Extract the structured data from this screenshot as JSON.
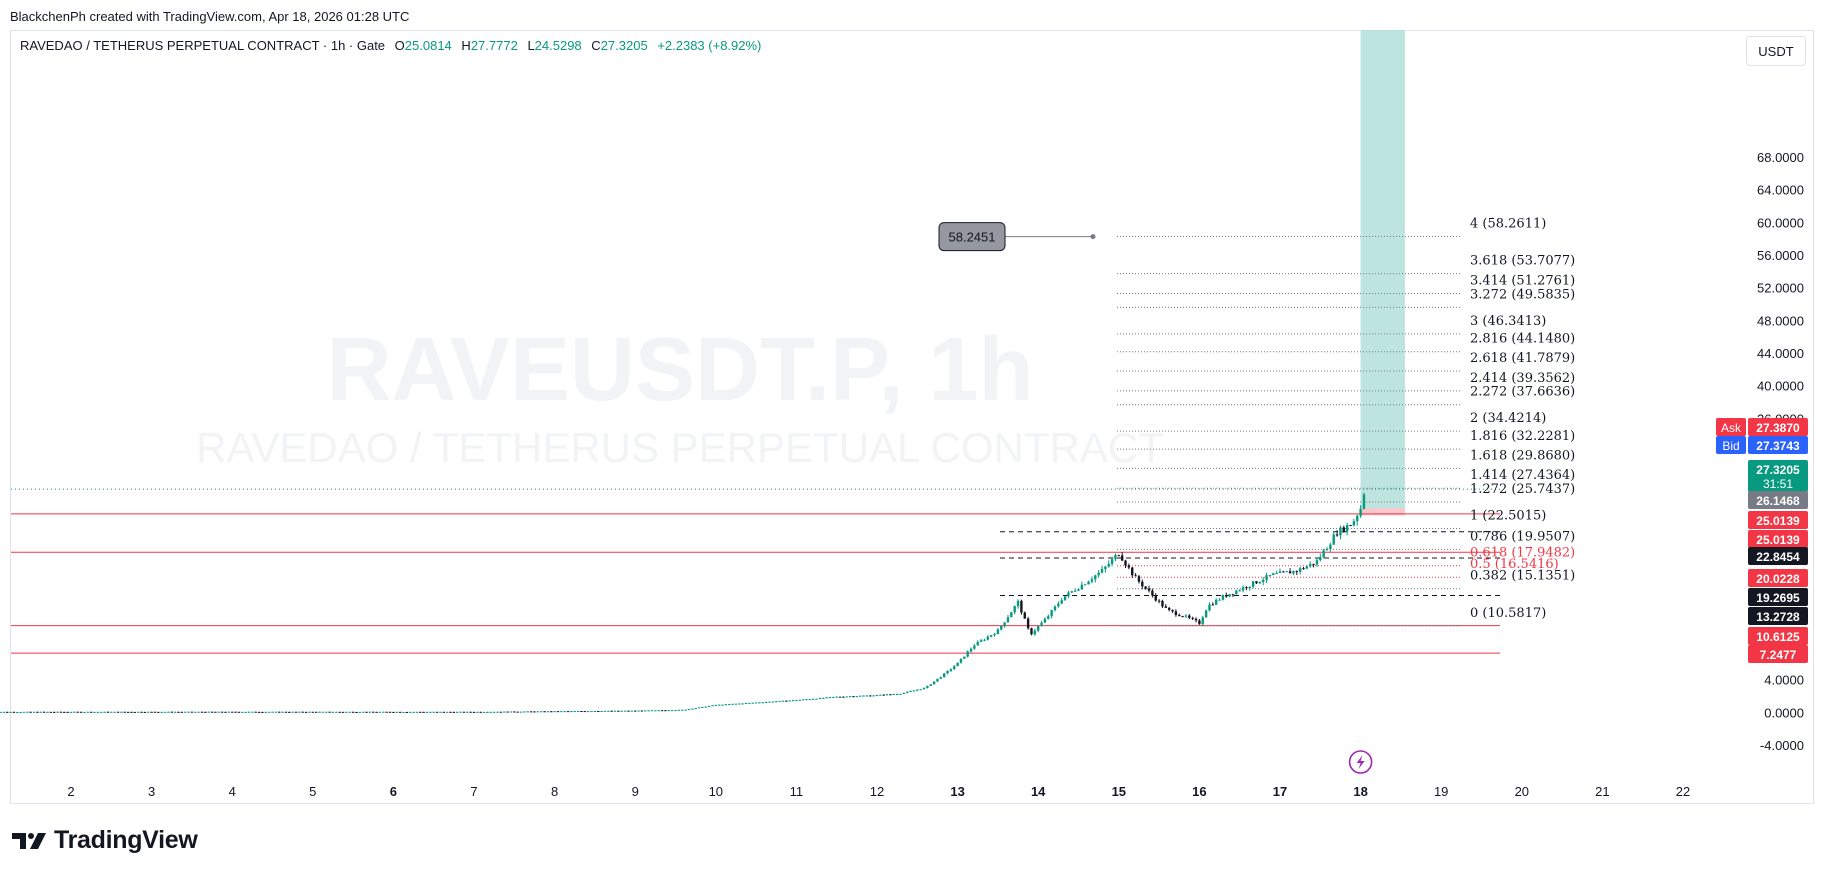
{
  "header": {
    "attribution": "BlackchenPh created with TradingView.com, Apr 18, 2026 01:28 UTC"
  },
  "legend": {
    "symbol": "RAVEDAO / TETHERUS PERPETUAL CONTRACT · 1h · Gate",
    "o_label": "O",
    "o": "25.0814",
    "h_label": "H",
    "h": "27.7772",
    "l_label": "L",
    "l": "24.5298",
    "c_label": "C",
    "c": "27.3205",
    "change": "+2.2383 (+8.92%)"
  },
  "currency": "USDT",
  "brand": "TradingView",
  "watermark": {
    "ticker": "RAVEUSDT.P, 1h",
    "name": "RAVEDAO / TETHERUS PERPETUAL CONTRACT"
  },
  "colors": {
    "up": "#089981",
    "down": "#131722",
    "red": "#f23645",
    "blue": "#2962ff",
    "target": "#b2dfd8",
    "accent": "#9c27b0"
  },
  "chart_data": {
    "type": "candlestick",
    "ylim": [
      -6,
      72
    ],
    "yticks": [
      "68.0000",
      "64.0000",
      "60.0000",
      "56.0000",
      "52.0000",
      "48.0000",
      "44.0000",
      "40.0000",
      "36.0000",
      "4.0000",
      "0.0000",
      "-4.0000"
    ],
    "xticks": [
      "2",
      "3",
      "4",
      "5",
      "6",
      "7",
      "8",
      "9",
      "10",
      "11",
      "12",
      "13",
      "14",
      "15",
      "16",
      "17",
      "18",
      "19",
      "20",
      "21",
      "22"
    ],
    "close_path": [
      {
        "day": 1.0,
        "p": 0.05
      },
      {
        "day": 4.0,
        "p": 0.06
      },
      {
        "day": 7.0,
        "p": 0.05
      },
      {
        "day": 9.0,
        "p": 0.2
      },
      {
        "day": 9.6,
        "p": 0.3
      },
      {
        "day": 10.0,
        "p": 0.9
      },
      {
        "day": 10.5,
        "p": 1.2
      },
      {
        "day": 11.0,
        "p": 1.5
      },
      {
        "day": 11.5,
        "p": 1.9
      },
      {
        "day": 12.0,
        "p": 2.1
      },
      {
        "day": 12.3,
        "p": 2.3
      },
      {
        "day": 12.6,
        "p": 3.0
      },
      {
        "day": 12.85,
        "p": 4.8
      },
      {
        "day": 13.0,
        "p": 6.0
      },
      {
        "day": 13.2,
        "p": 8.2
      },
      {
        "day": 13.5,
        "p": 10.0
      },
      {
        "day": 13.75,
        "p": 13.5
      },
      {
        "day": 13.9,
        "p": 9.5
      },
      {
        "day": 14.1,
        "p": 11.5
      },
      {
        "day": 14.3,
        "p": 14.0
      },
      {
        "day": 14.6,
        "p": 16.0
      },
      {
        "day": 14.8,
        "p": 17.4
      },
      {
        "day": 15.0,
        "p": 19.5
      },
      {
        "day": 15.2,
        "p": 16.5
      },
      {
        "day": 15.4,
        "p": 14.5
      },
      {
        "day": 15.6,
        "p": 12.5
      },
      {
        "day": 15.8,
        "p": 11.8
      },
      {
        "day": 16.0,
        "p": 10.9
      },
      {
        "day": 16.1,
        "p": 13.0
      },
      {
        "day": 16.3,
        "p": 14.2
      },
      {
        "day": 16.6,
        "p": 15.5
      },
      {
        "day": 16.9,
        "p": 16.8
      },
      {
        "day": 17.2,
        "p": 17.3
      },
      {
        "day": 17.45,
        "p": 18.4
      },
      {
        "day": 17.6,
        "p": 20.5
      },
      {
        "day": 17.7,
        "p": 22.0
      },
      {
        "day": 17.9,
        "p": 23.2
      },
      {
        "day": 18.0,
        "p": 25.0
      },
      {
        "day": 18.05,
        "p": 27.3205
      }
    ],
    "fib_levels": [
      {
        "label": "4 (58.2611)",
        "value": 58.2611
      },
      {
        "label": "3.618 (53.7077)",
        "value": 53.7077
      },
      {
        "label": "3.414 (51.2761)",
        "value": 51.2761
      },
      {
        "label": "3.272 (49.5835)",
        "value": 49.5835
      },
      {
        "label": "3 (46.3413)",
        "value": 46.3413
      },
      {
        "label": "2.816 (44.1480)",
        "value": 44.148
      },
      {
        "label": "2.618 (41.7879)",
        "value": 41.7879
      },
      {
        "label": "2.414 (39.3562)",
        "value": 39.3562
      },
      {
        "label": "2.272 (37.6636)",
        "value": 37.6636
      },
      {
        "label": "2 (34.4214)",
        "value": 34.4214
      },
      {
        "label": "1.816 (32.2281)",
        "value": 32.2281
      },
      {
        "label": "1.618 (29.8680)",
        "value": 29.868
      },
      {
        "label": "1.414 (27.4364)",
        "value": 27.4364
      },
      {
        "label": "1.272 (25.7437)",
        "value": 25.7437
      },
      {
        "label": "1 (22.5015)",
        "value": 22.5015
      },
      {
        "label": "0.786 (19.9507)",
        "value": 19.9507
      },
      {
        "label": "0.618 (17.9482)",
        "value": 17.9482,
        "color": "red"
      },
      {
        "label": "0.5 (16.5416)",
        "value": 16.5416,
        "color": "red"
      },
      {
        "label": "0.382 (15.1351)",
        "value": 15.1351
      },
      {
        "label": "0 (10.5817)",
        "value": 10.5817
      }
    ],
    "callout": {
      "text": "58.2451",
      "value": 58.2451
    },
    "horizontal_lines": [
      {
        "value": 24.3,
        "style": "red"
      },
      {
        "value": 19.6,
        "style": "red"
      },
      {
        "value": 10.6125,
        "style": "red"
      },
      {
        "value": 7.2477,
        "style": "red"
      },
      {
        "value": 22.1,
        "style": "dash"
      },
      {
        "value": 18.9,
        "style": "dash"
      },
      {
        "value": 14.3,
        "style": "dash"
      },
      {
        "value": 27.3205,
        "style": "dot"
      }
    ],
    "position": {
      "entry": 25.0139,
      "target": 72,
      "stop": 24.1,
      "start_day": 18.0,
      "end_day": 18.55
    },
    "price_labels": [
      {
        "text": "Ask",
        "value": "27.3870",
        "style": "ask"
      },
      {
        "text": "Bid",
        "value": "27.3743",
        "style": "bid"
      },
      {
        "text": "",
        "value": "27.3205",
        "sub": "31:51",
        "style": "last"
      },
      {
        "text": "",
        "value": "26.1468",
        "style": "gray"
      },
      {
        "text": "",
        "value": "25.0139",
        "style": "red"
      },
      {
        "text": "",
        "value": "25.0139",
        "style": "red"
      },
      {
        "text": "",
        "value": "22.8454",
        "style": "black"
      },
      {
        "text": "",
        "value": "20.0228",
        "style": "red"
      },
      {
        "text": "",
        "value": "19.2695",
        "style": "black"
      },
      {
        "text": "",
        "value": "13.2728",
        "style": "black"
      },
      {
        "text": "",
        "value": "10.6125",
        "style": "red"
      },
      {
        "text": "",
        "value": "7.2477",
        "style": "red"
      }
    ]
  }
}
